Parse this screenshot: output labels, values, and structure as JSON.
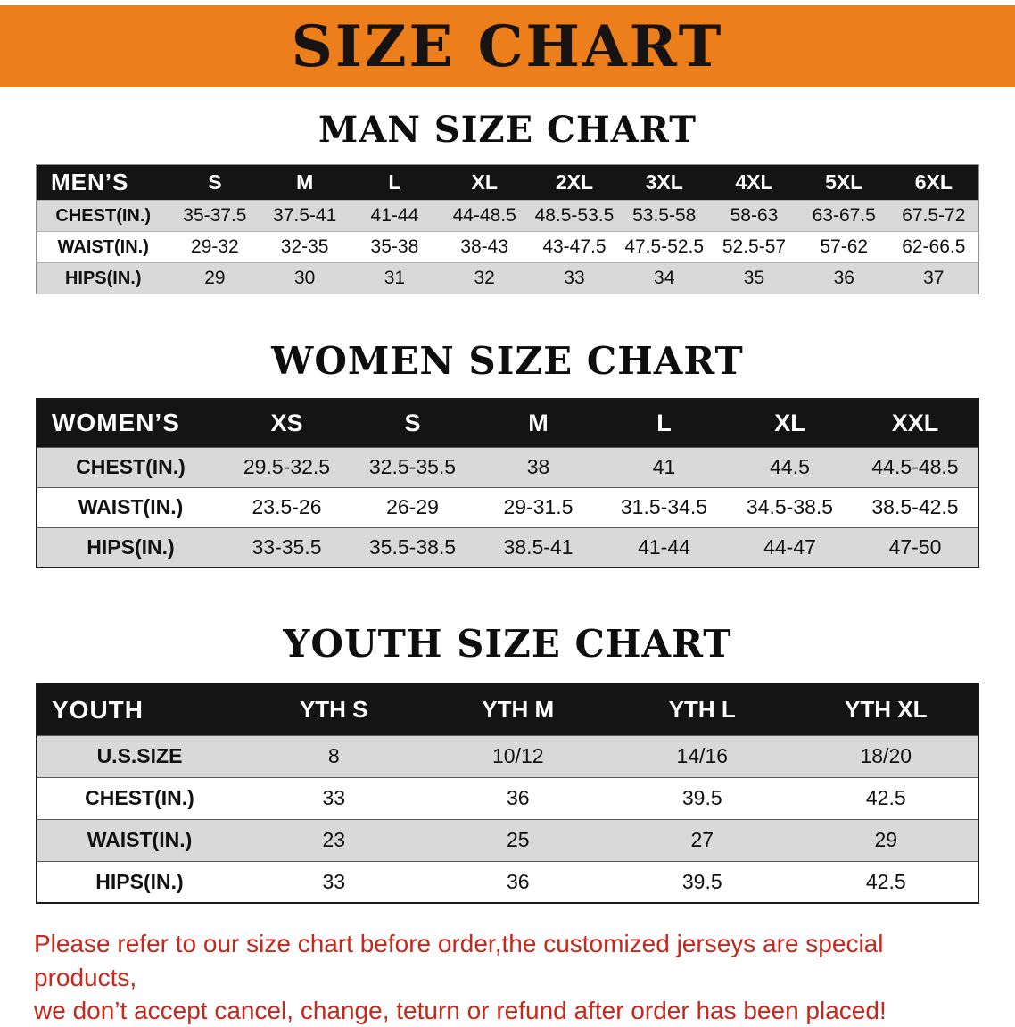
{
  "banner": {
    "title": "SIZE CHART"
  },
  "sections": [
    {
      "key": "men",
      "heading": "MAN SIZE CHART",
      "table": {
        "corner_label": "MEN’S",
        "columns": [
          "S",
          "M",
          "L",
          "XL",
          "2XL",
          "3XL",
          "4XL",
          "5XL",
          "6XL"
        ],
        "rows": [
          {
            "label": "CHEST(IN.)",
            "values": [
              "35-37.5",
              "37.5-41",
              "41-44",
              "44-48.5",
              "48.5-53.5",
              "53.5-58",
              "58-63",
              "63-67.5",
              "67.5-72"
            ]
          },
          {
            "label": "WAIST(IN.)",
            "values": [
              "29-32",
              "32-35",
              "35-38",
              "38-43",
              "43-47.5",
              "47.5-52.5",
              "52.5-57",
              "57-62",
              "62-66.5"
            ]
          },
          {
            "label": "HIPS(IN.)",
            "values": [
              "29",
              "30",
              "31",
              "32",
              "33",
              "34",
              "35",
              "36",
              "37"
            ]
          }
        ]
      }
    },
    {
      "key": "women",
      "heading": "WOMEN SIZE CHART",
      "table": {
        "corner_label": "WOMEN’S",
        "columns": [
          "XS",
          "S",
          "M",
          "L",
          "XL",
          "XXL"
        ],
        "rows": [
          {
            "label": "CHEST(IN.)",
            "values": [
              "29.5-32.5",
              "32.5-35.5",
              "38",
              "41",
              "44.5",
              "44.5-48.5"
            ]
          },
          {
            "label": "WAIST(IN.)",
            "values": [
              "23.5-26",
              "26-29",
              "29-31.5",
              "31.5-34.5",
              "34.5-38.5",
              "38.5-42.5"
            ]
          },
          {
            "label": "HIPS(IN.)",
            "values": [
              "33-35.5",
              "35.5-38.5",
              "38.5-41",
              "41-44",
              "44-47",
              "47-50"
            ]
          }
        ]
      }
    },
    {
      "key": "youth",
      "heading": "YOUTH SIZE CHART",
      "table": {
        "corner_label": "YOUTH",
        "columns": [
          "YTH S",
          "YTH M",
          "YTH L",
          "YTH XL"
        ],
        "rows": [
          {
            "label": "U.S.SIZE",
            "values": [
              "8",
              "10/12",
              "14/16",
              "18/20"
            ]
          },
          {
            "label": "CHEST(IN.)",
            "values": [
              "33",
              "36",
              "39.5",
              "42.5"
            ]
          },
          {
            "label": "WAIST(IN.)",
            "values": [
              "23",
              "25",
              "27",
              "29"
            ]
          },
          {
            "label": "HIPS(IN.)",
            "values": [
              "33",
              "36",
              "39.5",
              "42.5"
            ]
          }
        ]
      }
    }
  ],
  "disclaimer": {
    "lines": [
      "Please refer to our size chart before order,the customized jerseys are special products,",
      "we don’t accept cancel, change, teturn or refund after order has been placed!"
    ]
  },
  "colors": {
    "banner_orange": "#EC7E1B",
    "header_black": "#141414",
    "stripe_gray": "#D9D9D9",
    "disclaimer_red": "#C5281C"
  }
}
